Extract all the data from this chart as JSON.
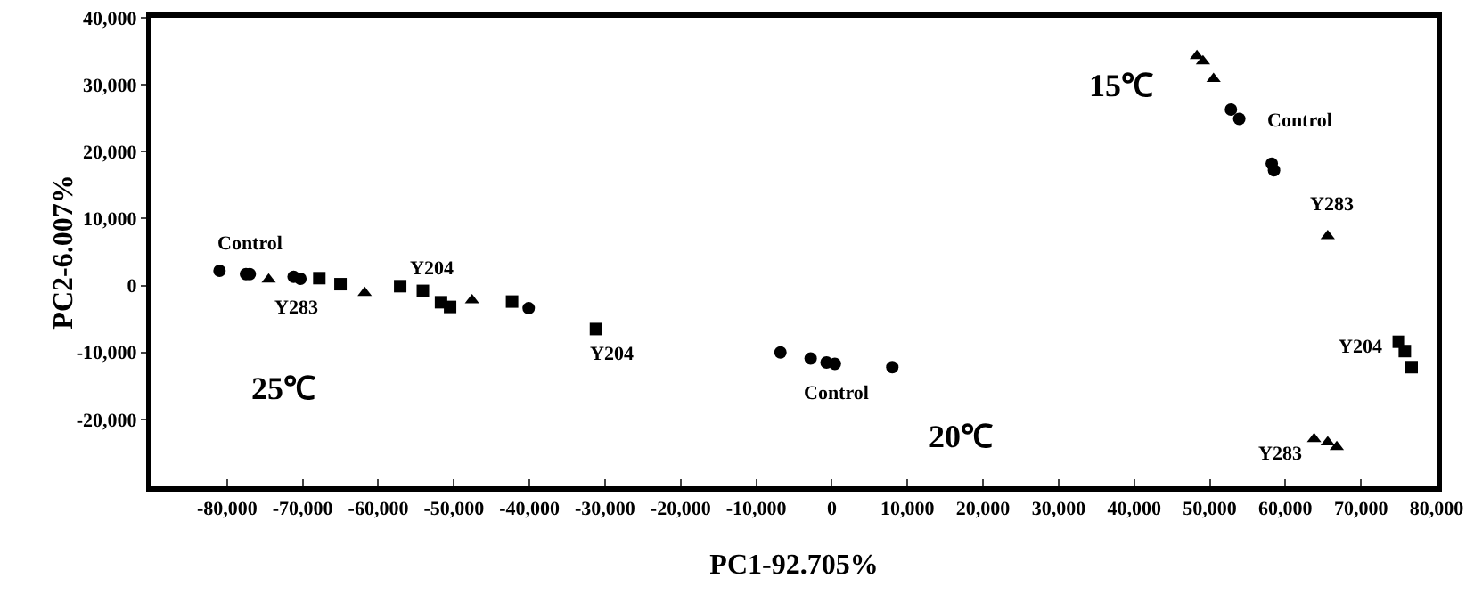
{
  "chart_data": {
    "type": "scatter",
    "xlabel": "PC1-92.705%",
    "ylabel": "PC2-6.007%",
    "xlim": [
      -90000,
      80000
    ],
    "ylim": [
      -30000,
      40000
    ],
    "xticks": [
      {
        "value": -80000,
        "label": "-80,000"
      },
      {
        "value": -70000,
        "label": "-70,000"
      },
      {
        "value": -60000,
        "label": "-60,000"
      },
      {
        "value": -50000,
        "label": "-50,000"
      },
      {
        "value": -40000,
        "label": "-40,000"
      },
      {
        "value": -30000,
        "label": "-30,000"
      },
      {
        "value": -20000,
        "label": "-20,000"
      },
      {
        "value": -10000,
        "label": "-10,000"
      },
      0,
      {
        "value": 10000,
        "label": "10,000"
      },
      {
        "value": 20000,
        "label": "20,000"
      },
      {
        "value": 30000,
        "label": "30,000"
      },
      {
        "value": 40000,
        "label": "40,000"
      },
      {
        "value": 50000,
        "label": "50,000"
      },
      {
        "value": 60000,
        "label": "60,000"
      },
      {
        "value": 70000,
        "label": "70,000"
      },
      {
        "value": 80000,
        "label": "80,000"
      }
    ],
    "yticks": [
      {
        "value": -20000,
        "label": "-20,000"
      },
      {
        "value": -10000,
        "label": "-10,000"
      },
      0,
      {
        "value": 10000,
        "label": "10,000"
      },
      {
        "value": 20000,
        "label": "20,000"
      },
      {
        "value": 30000,
        "label": "30,000"
      },
      {
        "value": 40000,
        "label": "40,000"
      }
    ],
    "grid": false,
    "series": [
      {
        "color": "#000000",
        "marker": "circle",
        "x": [
          -81000,
          -77500,
          -77000,
          -71200,
          -70300,
          -40100,
          -6800,
          -2800,
          -700,
          400,
          8000,
          52800,
          53900,
          58200,
          58500
        ],
        "values": [
          2200,
          1700,
          1700,
          1300,
          1000,
          -3400,
          -10000,
          -10900,
          -11500,
          -11700,
          -12200,
          26300,
          24900,
          18200,
          17200
        ]
      },
      {
        "color": "#000000",
        "marker": "triangle",
        "x": [
          -74500,
          -61800,
          -47600,
          48300,
          49100,
          50500,
          65600,
          63800,
          65600,
          66800
        ],
        "values": [
          900,
          -1100,
          -2200,
          34300,
          33500,
          30900,
          7400,
          -22900,
          -23400,
          -24100
        ]
      },
      {
        "color": "#000000",
        "marker": "square",
        "x": [
          -67800,
          -65000,
          -57100,
          -54100,
          -51700,
          -50500,
          -42300,
          -31200,
          75000,
          75800,
          76700
        ],
        "values": [
          1100,
          200,
          -100,
          -800,
          -2500,
          -3200,
          -2400,
          -6500,
          -8400,
          -9800,
          -12200
        ]
      }
    ],
    "annotations": [
      "Control",
      "Y283",
      "Y204",
      "Y204",
      "25℃",
      "Control",
      "20℃",
      "15℃",
      "Control",
      "Y283",
      "Y204",
      "Y283"
    ]
  }
}
